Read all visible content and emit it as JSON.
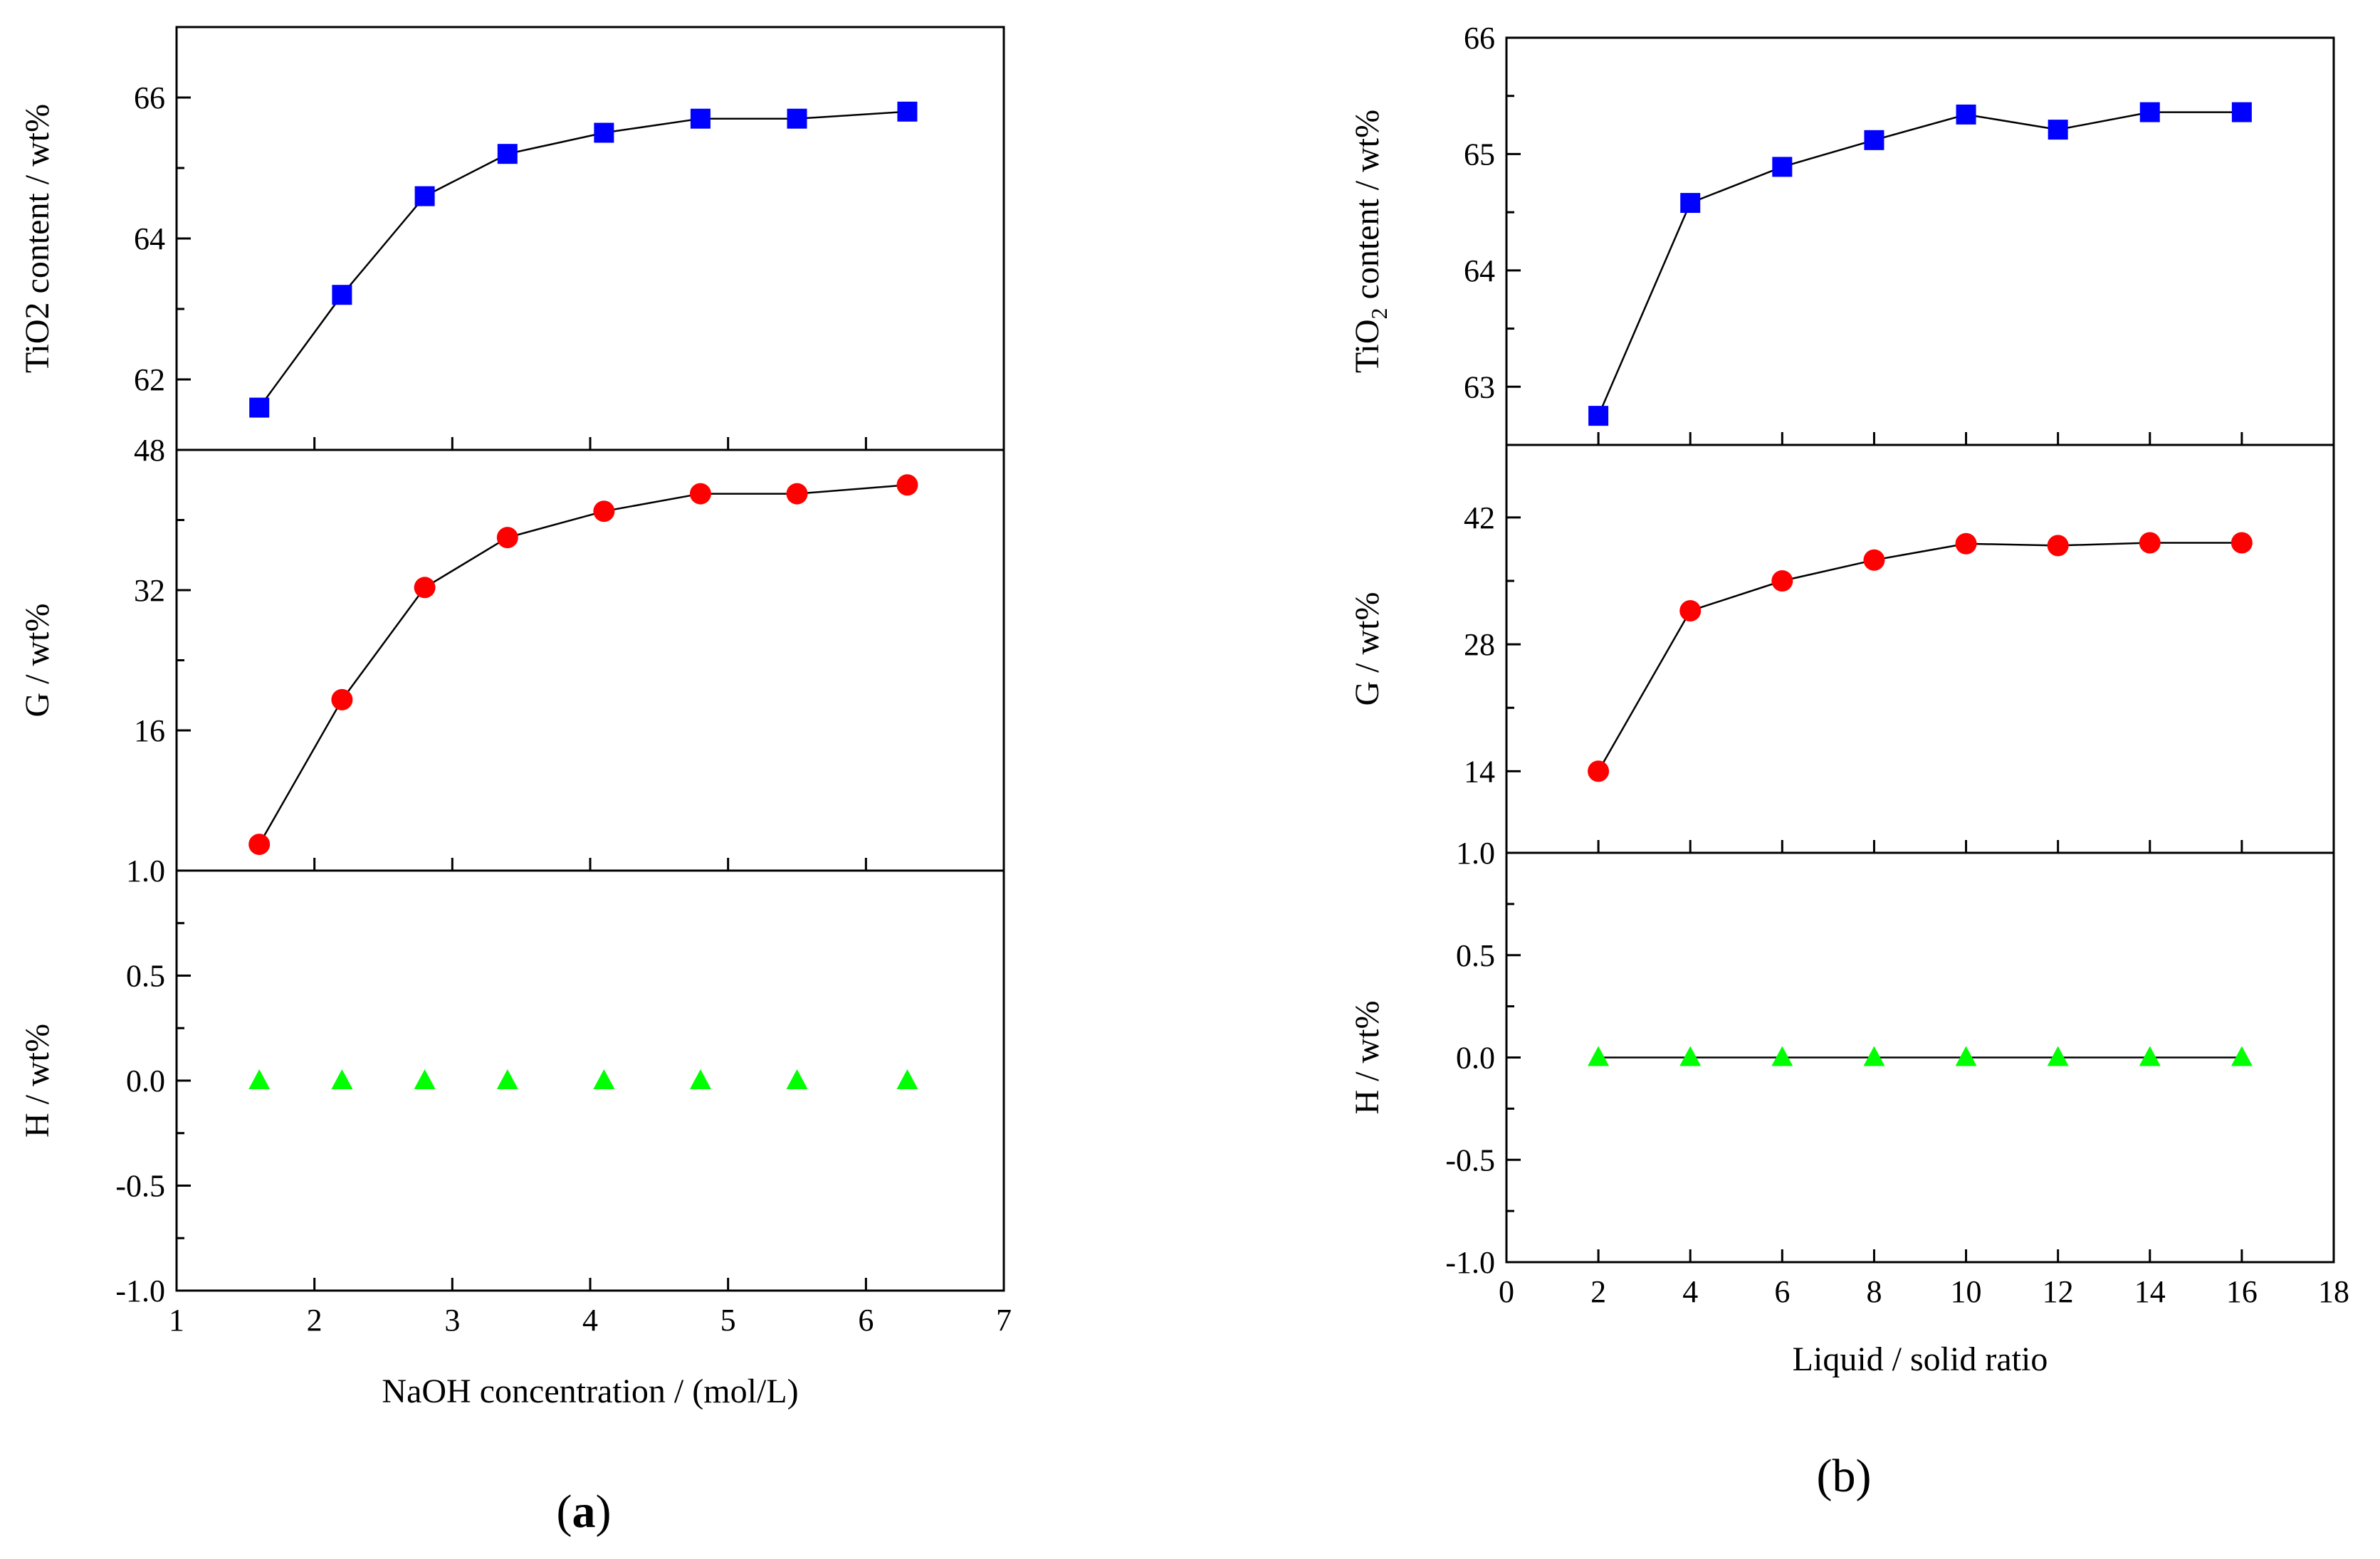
{
  "figure_labels": {
    "a_open": "(",
    "a_letter": "a",
    "a_close": ")",
    "b": "(b)"
  },
  "colors": {
    "tio2": "#0000ff",
    "g": "#ff0000",
    "h": "#00ff00",
    "axis": "#000000",
    "line": "#000000"
  },
  "chart_data": [
    {
      "id": "a",
      "type": "line",
      "xlabel": "NaOH concentration / (mol/L)",
      "xlim": [
        1,
        7
      ],
      "xticks": [
        1,
        2,
        3,
        4,
        5,
        6,
        7
      ],
      "xtick_labels": [
        "1",
        "2",
        "3",
        "4",
        "5",
        "6",
        "7"
      ],
      "x": [
        1.6,
        2.2,
        2.8,
        3.4,
        4.1,
        4.8,
        5.5,
        6.3
      ],
      "panels": [
        {
          "name": "tio2",
          "ylabel": "TiO2 content / wt%",
          "ylim": [
            61,
            67
          ],
          "yticks": [
            62,
            64,
            66
          ],
          "ytick_labels": [
            "62",
            "64",
            "66"
          ],
          "marker": "square",
          "color": "#0000ff",
          "values": [
            61.6,
            63.2,
            64.6,
            65.2,
            65.5,
            65.7,
            65.7,
            65.8
          ]
        },
        {
          "name": "g",
          "ylabel": "G / wt%",
          "ylim": [
            0,
            48
          ],
          "yticks": [
            16,
            32,
            48
          ],
          "ytick_labels": [
            "16",
            "32",
            "48"
          ],
          "marker": "circle",
          "color": "#ff0000",
          "values": [
            3,
            19.5,
            32.3,
            38,
            41,
            43,
            43,
            44
          ]
        },
        {
          "name": "h",
          "ylabel": "H / wt%",
          "ylim": [
            -1.0,
            1.0
          ],
          "yticks": [
            -1.0,
            -0.5,
            0.0,
            0.5,
            1.0
          ],
          "ytick_labels": [
            "-1.0",
            "-0.5",
            "0.0",
            "0.5",
            "1.0"
          ],
          "marker": "triangle",
          "color": "#00ff00",
          "values": [
            0,
            0,
            0,
            0,
            0,
            0,
            0,
            0
          ],
          "connect": false
        }
      ]
    },
    {
      "id": "b",
      "type": "line",
      "xlabel": "Liquid / solid ratio",
      "xlim": [
        0,
        18
      ],
      "xticks": [
        0,
        2,
        4,
        6,
        8,
        10,
        12,
        14,
        16,
        18
      ],
      "xtick_labels": [
        "0",
        "2",
        "4",
        "6",
        "8",
        "10",
        "12",
        "14",
        "16",
        "18"
      ],
      "x": [
        2,
        4,
        6,
        8,
        10,
        12,
        14,
        16
      ],
      "panels": [
        {
          "name": "tio2",
          "ylabel_main": "TiO",
          "ylabel_sub": "2",
          "ylabel_rest": " content / wt%",
          "ylim": [
            62.5,
            66
          ],
          "yticks": [
            63,
            64,
            65,
            66
          ],
          "ytick_labels": [
            "63",
            "64",
            "65",
            "66"
          ],
          "marker": "square",
          "color": "#0000ff",
          "values": [
            62.75,
            64.58,
            64.89,
            65.12,
            65.34,
            65.21,
            65.36,
            65.36
          ]
        },
        {
          "name": "g",
          "ylabel": "G / wt%",
          "ylim": [
            5,
            50
          ],
          "yticks": [
            14,
            28,
            42
          ],
          "ytick_labels": [
            "14",
            "28",
            "42"
          ],
          "marker": "circle",
          "color": "#ff0000",
          "values": [
            14,
            31.7,
            35,
            37.3,
            39.1,
            38.9,
            39.2,
            39.2
          ]
        },
        {
          "name": "h",
          "ylabel": "H / wt%",
          "ylim": [
            -1.0,
            1.0
          ],
          "yticks": [
            -1.0,
            -0.5,
            0.0,
            0.5,
            1.0
          ],
          "ytick_labels": [
            "-1.0",
            "-0.5",
            "0.0",
            "0.5",
            "1.0"
          ],
          "marker": "triangle",
          "color": "#00ff00",
          "values": [
            0,
            0,
            0,
            0,
            0,
            0,
            0,
            0
          ],
          "connect": true
        }
      ]
    }
  ]
}
